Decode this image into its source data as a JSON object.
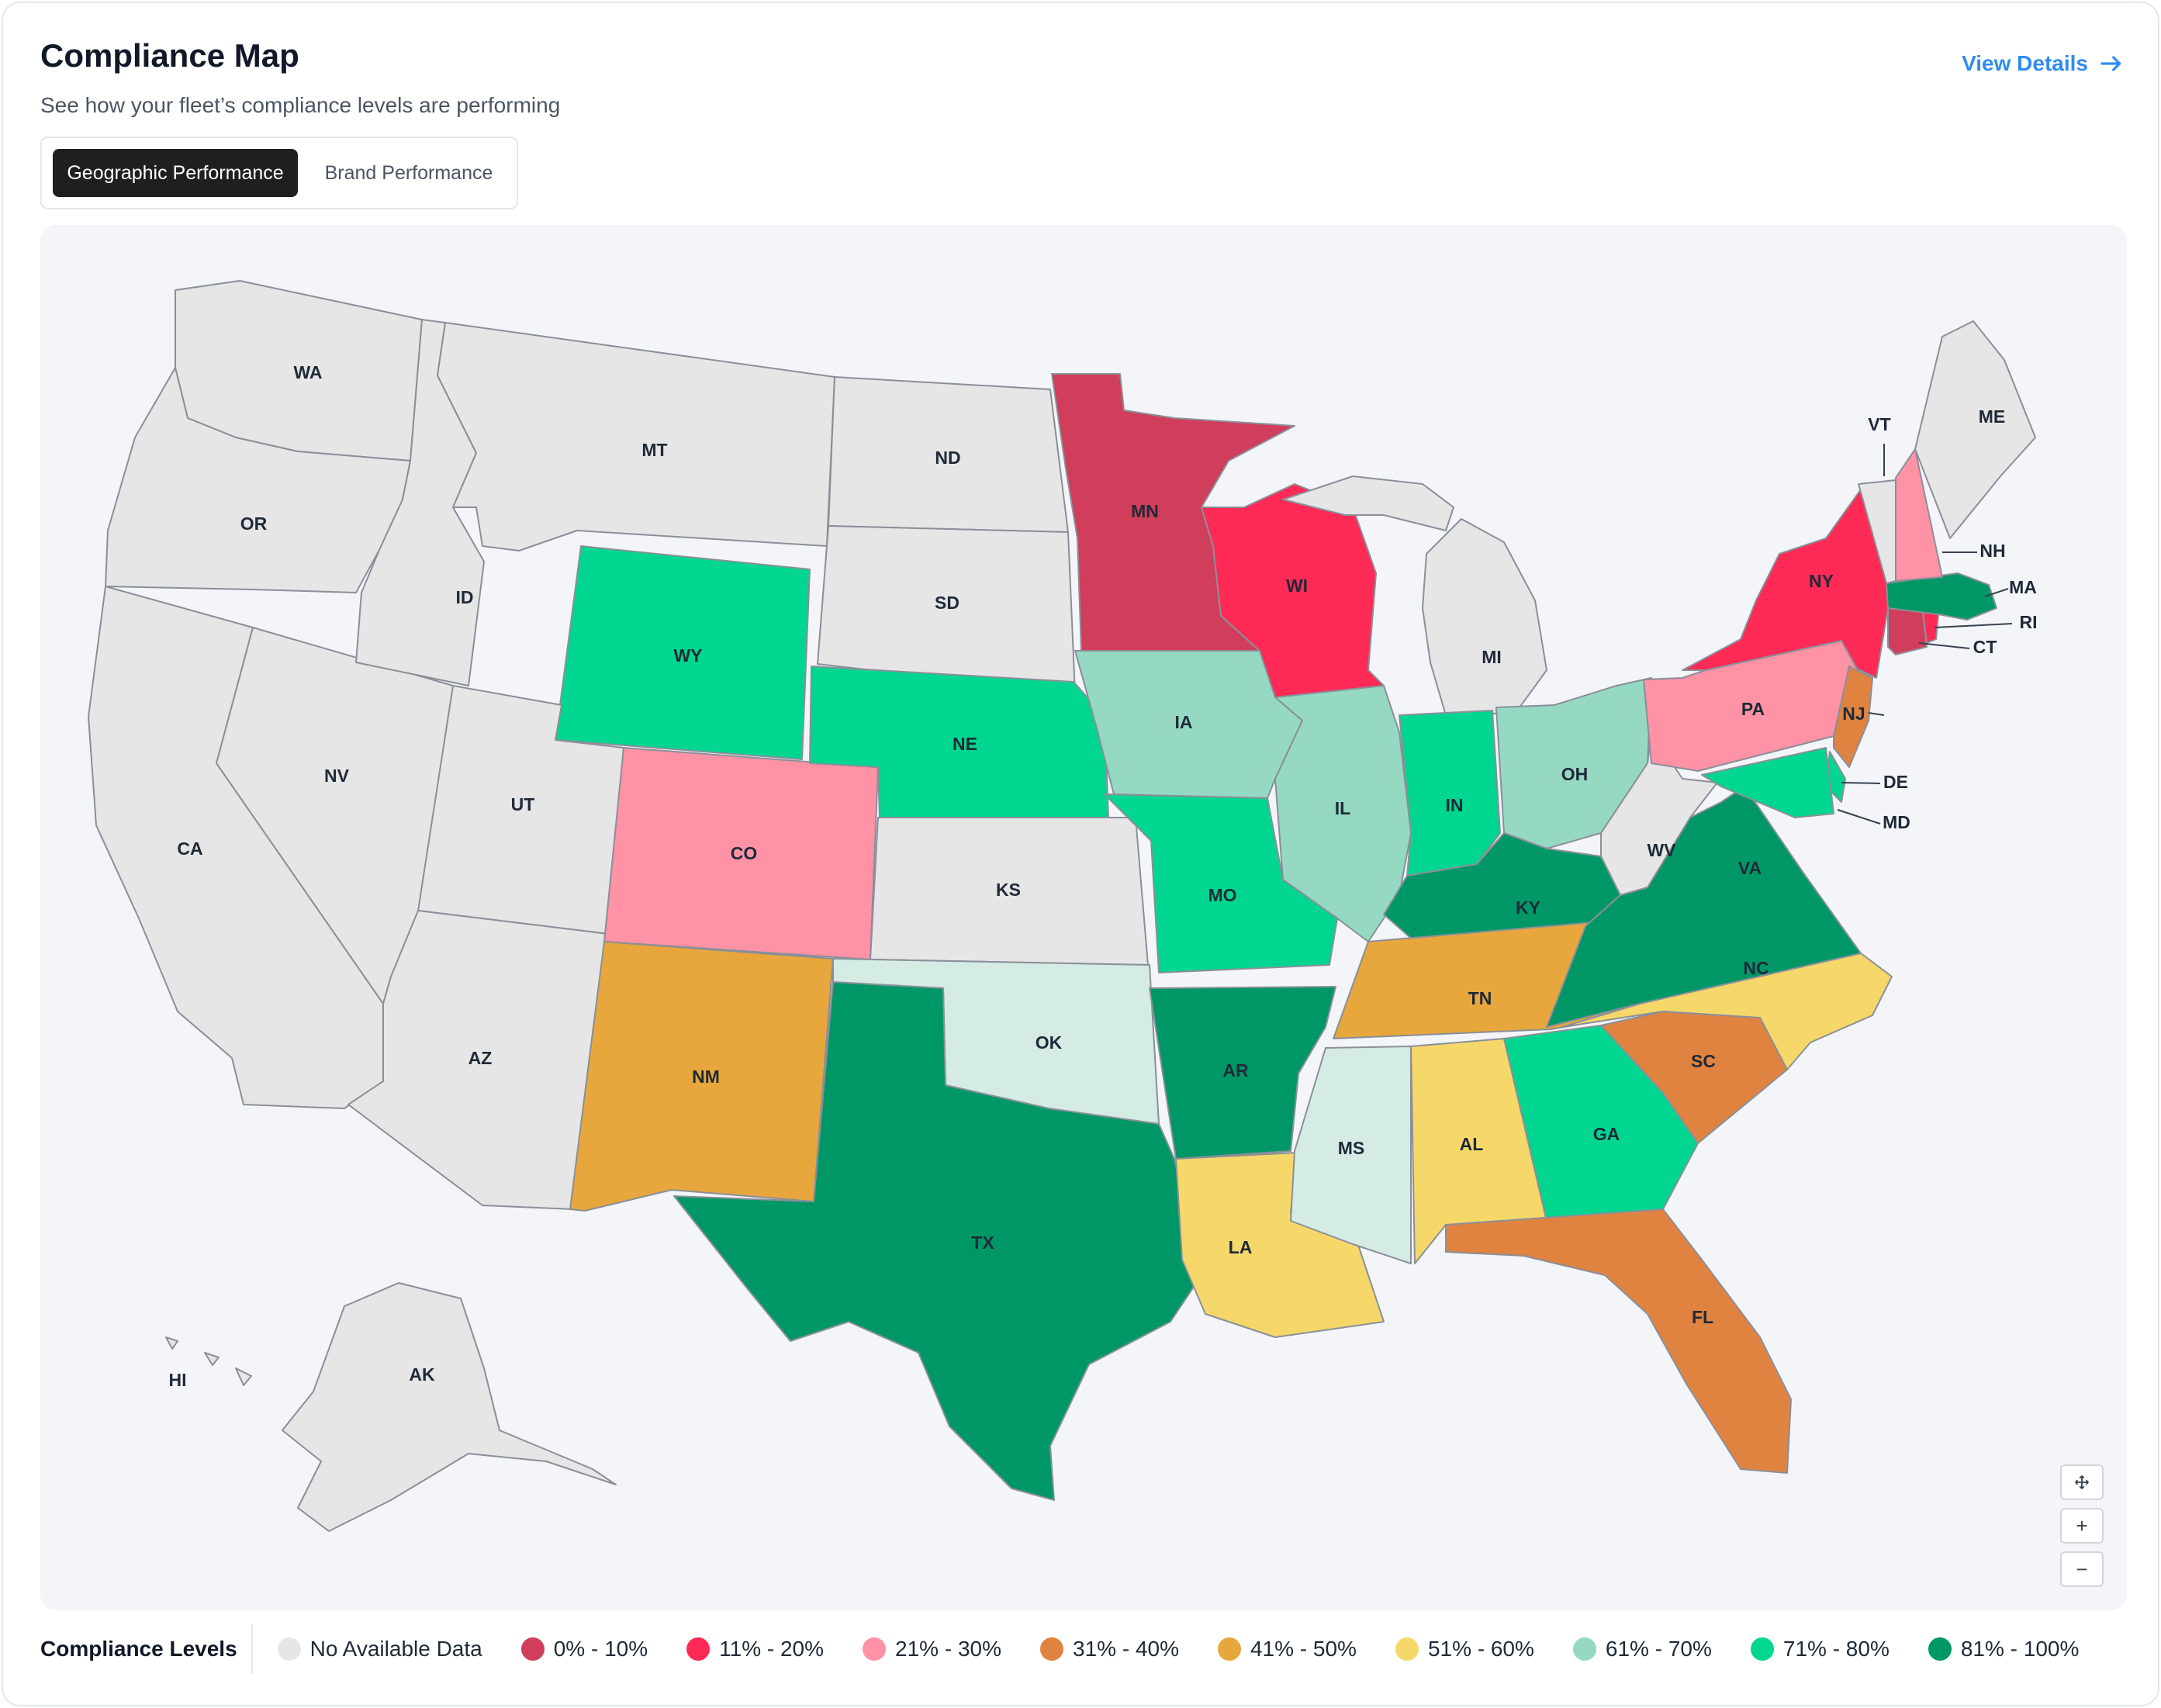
{
  "header": {
    "title": "Compliance Map",
    "subtitle": "See how your fleet’s compliance levels are performing",
    "view_details": "View Details"
  },
  "tabs": [
    {
      "label": "Geographic Performance",
      "active": true
    },
    {
      "label": "Brand Performance",
      "active": false
    }
  ],
  "map_controls": {
    "reset_icon": "move-icon",
    "zoom_in": "+",
    "zoom_out": "−"
  },
  "colors": {
    "no_data": "#e6e6e6",
    "b0_10": "#d03e5b",
    "b11_20": "#ff2a56",
    "b21_30": "#ff92a4",
    "b31_40": "#e08341",
    "b41_50": "#e7a73c",
    "b51_60": "#f6d86a",
    "b61_70": "#95d9c3",
    "b71_80": "#00d68f",
    "b81_100": "#009767"
  },
  "legend": {
    "title": "Compliance Levels",
    "items": [
      {
        "label": "No Available Data",
        "key": "no_data"
      },
      {
        "label": "0% - 10%",
        "key": "b0_10"
      },
      {
        "label": "11% - 20%",
        "key": "b11_20"
      },
      {
        "label": "21% - 30%",
        "key": "b21_30"
      },
      {
        "label": "31% - 40%",
        "key": "b31_40"
      },
      {
        "label": "41% - 50%",
        "key": "b41_50"
      },
      {
        "label": "51% - 60%",
        "key": "b51_60"
      },
      {
        "label": "61% - 70%",
        "key": "b61_70"
      },
      {
        "label": "71% - 80%",
        "key": "b71_80"
      },
      {
        "label": "81% - 100%",
        "key": "b81_100"
      }
    ]
  },
  "states": {
    "WA": "no_data",
    "OR": "no_data",
    "CA": "no_data",
    "NV": "no_data",
    "ID": "no_data",
    "MT": "no_data",
    "WY": "b71_80",
    "UT": "no_data",
    "AZ": "no_data",
    "CO": "b21_30",
    "NM": "b41_50",
    "ND": "no_data",
    "SD": "no_data",
    "NE": "b71_80",
    "KS": "no_data",
    "OK": "other",
    "TX": "b81_100",
    "MN": "b0_10",
    "IA": "b61_70",
    "MO": "b71_80",
    "AR": "b81_100",
    "LA": "b51_60",
    "WI": "b11_20",
    "IL": "b61_70",
    "MI": "no_data",
    "IN": "b71_80",
    "OH": "b61_70",
    "KY": "b81_100",
    "TN": "b41_50",
    "MS": "other",
    "AL": "b51_60",
    "GA": "b71_80",
    "FL": "b31_40",
    "SC": "b31_40",
    "NC": "b51_60",
    "VA": "b81_100",
    "WV": "no_data",
    "PA": "b21_30",
    "NY": "b11_20",
    "NJ": "b31_40",
    "DE": "b71_80",
    "MD": "b71_80",
    "CT": "b0_10",
    "RI": "b11_20",
    "MA": "b81_100",
    "VT": "no_data",
    "NH": "b21_30",
    "ME": "no_data",
    "AK": "no_data",
    "HI": "no_data"
  },
  "extra_colors": {
    "other": "#d4ece4"
  }
}
